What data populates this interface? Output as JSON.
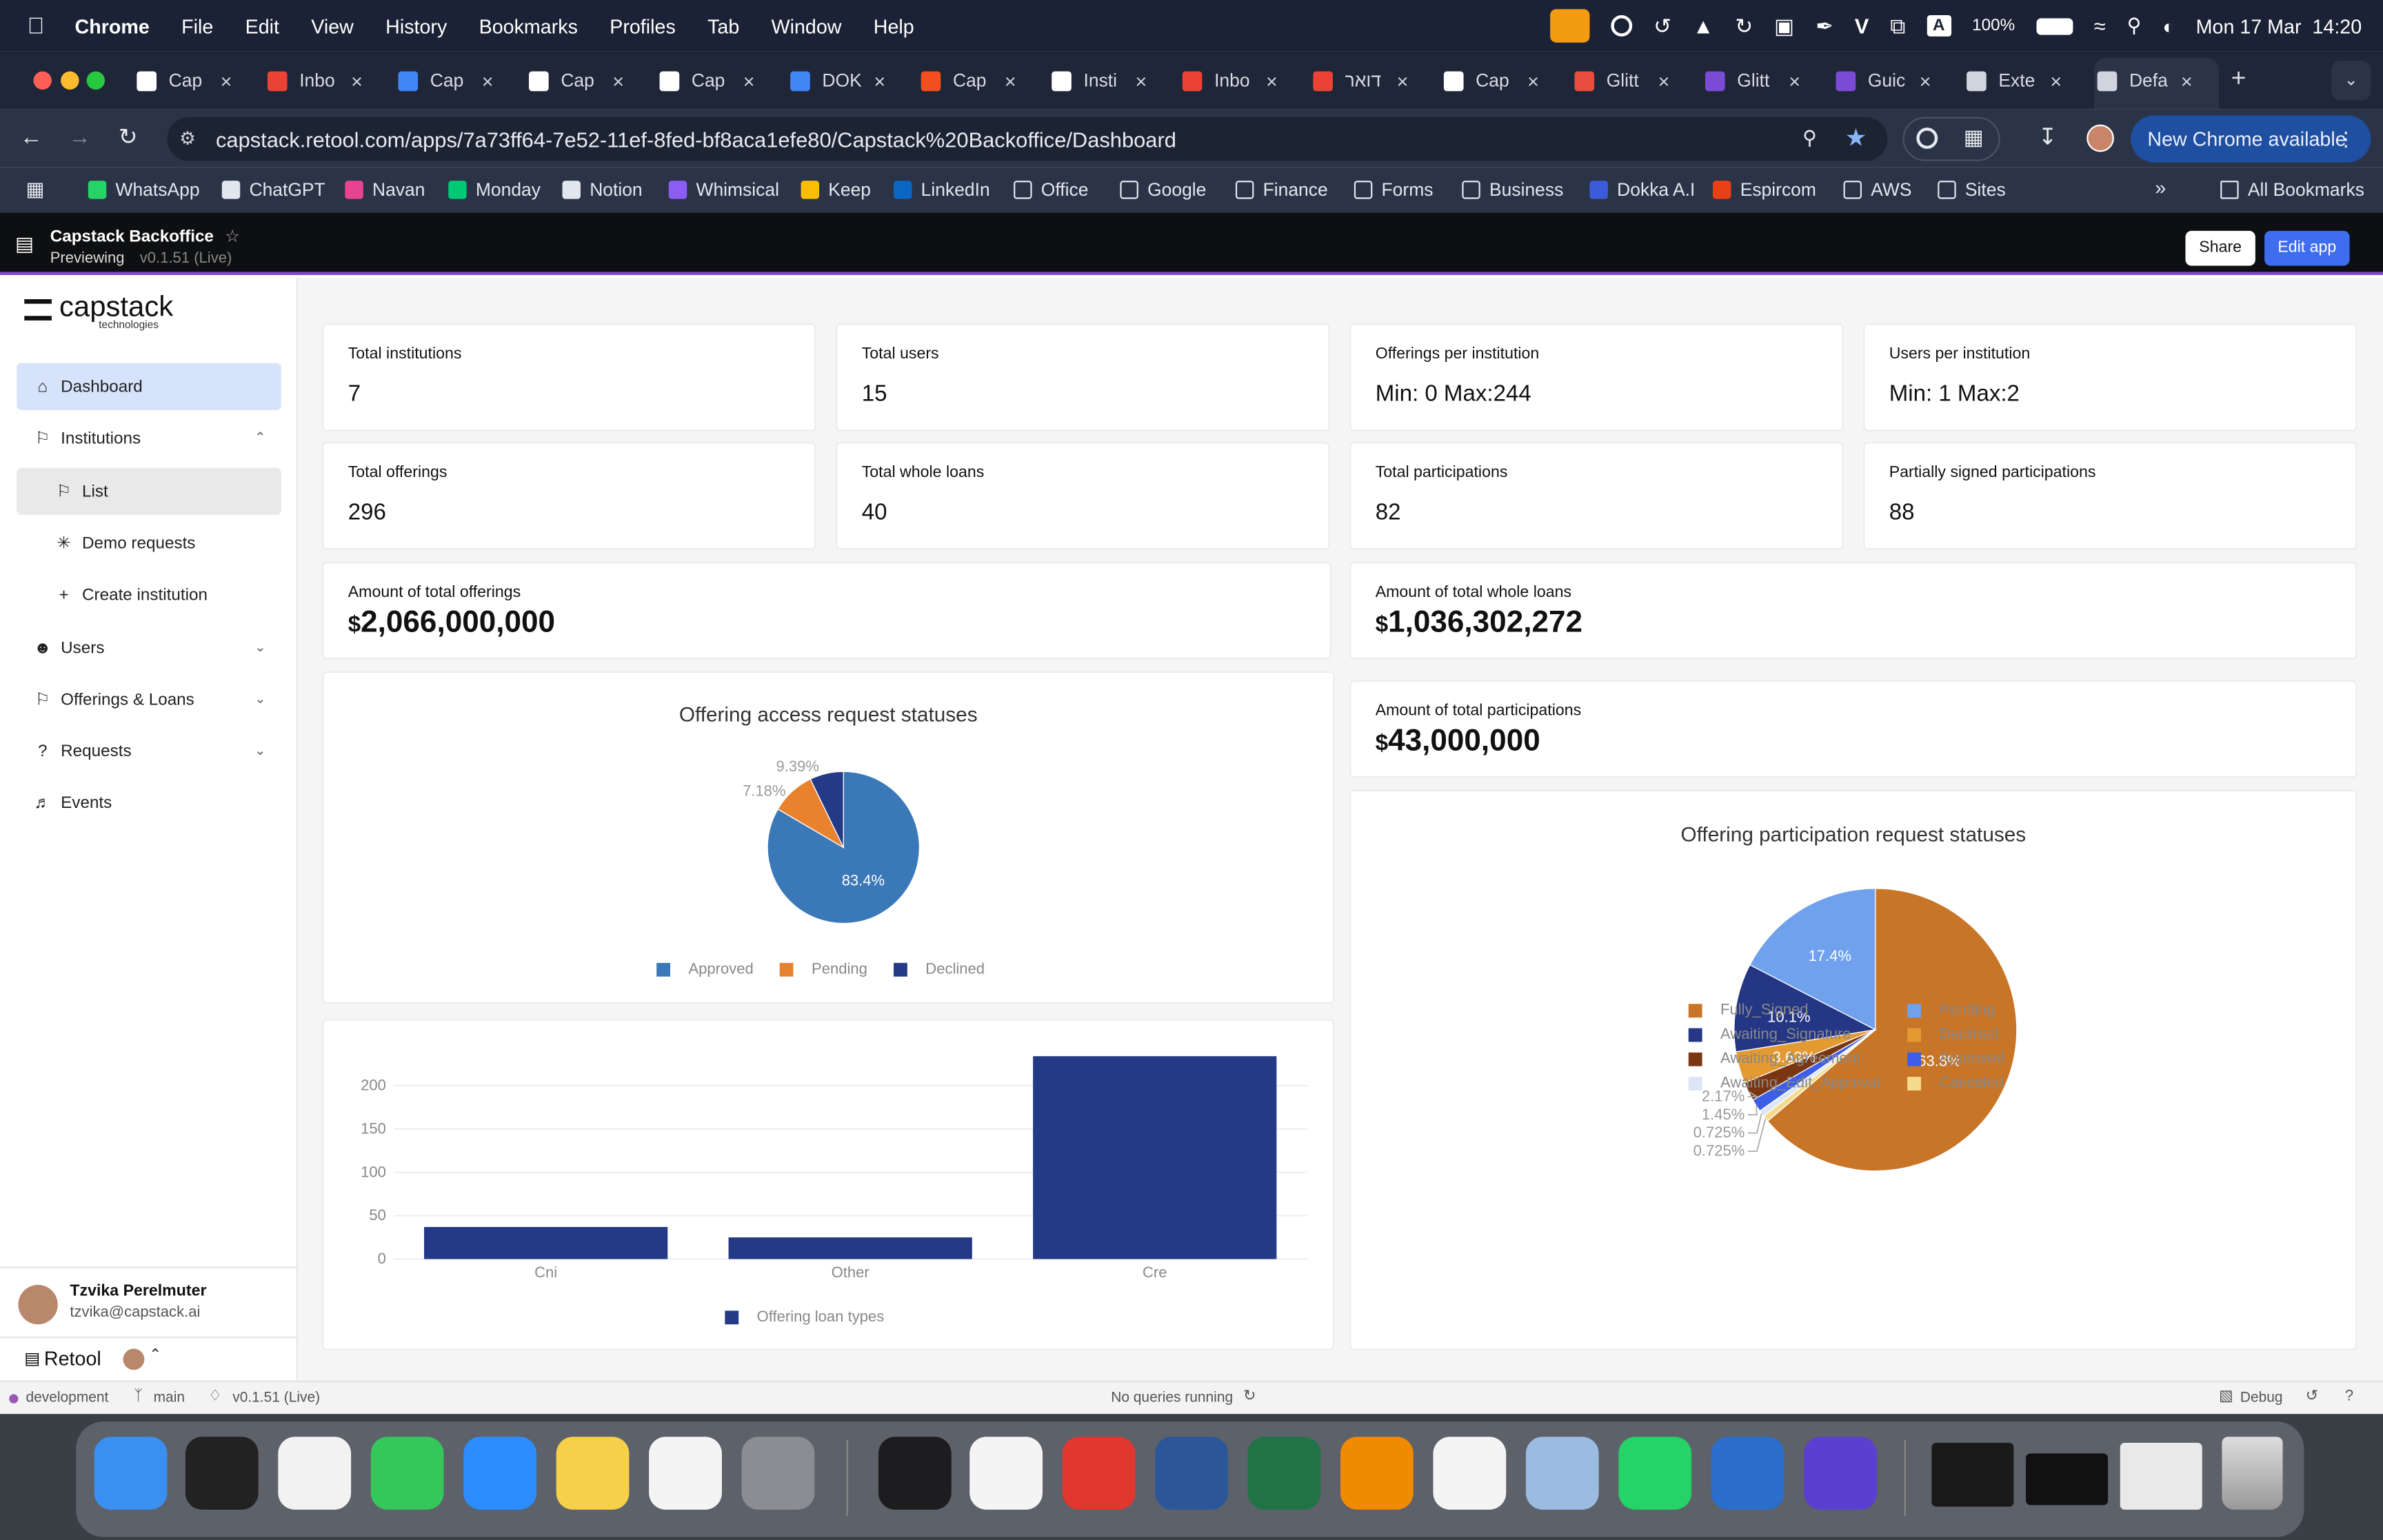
{
  "menubar": {
    "app_name": "Chrome",
    "items": [
      "File",
      "Edit",
      "View",
      "History",
      "Bookmarks",
      "Profiles",
      "Tab",
      "Window",
      "Help"
    ],
    "battery": "100%",
    "datetime": "Mon 17 Mar  14:20"
  },
  "tabs": [
    {
      "label": "Cap",
      "color": "#ffffff"
    },
    {
      "label": "Inbo",
      "color": "#ea4335"
    },
    {
      "label": "Cap",
      "color": "#4285f4"
    },
    {
      "label": "Cap",
      "color": "#ffffff"
    },
    {
      "label": "Cap",
      "color": "#ffffff"
    },
    {
      "label": "DOK",
      "color": "#4285f4"
    },
    {
      "label": "Cap",
      "color": "#f24e1e"
    },
    {
      "label": "Insti",
      "color": "#ffffff"
    },
    {
      "label": "Inbo",
      "color": "#ea4335"
    },
    {
      "label": "דואר",
      "color": "#ea4335"
    },
    {
      "label": "Cap",
      "color": "#ffffff"
    },
    {
      "label": "Glitt",
      "color": "#e74c3c"
    },
    {
      "label": "Glitt",
      "color": "#7b4bd6"
    },
    {
      "label": "Guic",
      "color": "#7b4bd6"
    },
    {
      "label": "Exte",
      "color": "#cfd4de"
    },
    {
      "label": "Defa",
      "color": "#cfd4de"
    }
  ],
  "address": {
    "url": "capstack.retool.com/apps/7a73ff64-7e52-11ef-8fed-bf8aca1efe80/Capstack%20Backoffice/Dashboard",
    "update_label": "New Chrome available"
  },
  "bookmarks": [
    {
      "label": "WhatsApp",
      "color": "#25d366"
    },
    {
      "label": "ChatGPT",
      "color": "#e2e6ee"
    },
    {
      "label": "Navan",
      "color": "#e84393"
    },
    {
      "label": "Monday",
      "color": "#00c875"
    },
    {
      "label": "Notion",
      "color": "#e2e6ee"
    },
    {
      "label": "Whimsical",
      "color": "#8b5cf6"
    },
    {
      "label": "Keep",
      "color": "#fbbc04"
    },
    {
      "label": "LinkedIn",
      "color": "#0a66c2"
    },
    {
      "label": "Office",
      "color": "folder"
    },
    {
      "label": "Google",
      "color": "folder"
    },
    {
      "label": "Finance",
      "color": "folder"
    },
    {
      "label": "Forms",
      "color": "folder"
    },
    {
      "label": "Business",
      "color": "folder"
    },
    {
      "label": "Dokka A.I",
      "color": "#3b5bdb"
    },
    {
      "label": "Espircom",
      "color": "#e84118"
    },
    {
      "label": "AWS",
      "color": "folder"
    },
    {
      "label": "Sites",
      "color": "folder"
    }
  ],
  "all_bookmarks": "All Bookmarks",
  "retool": {
    "app_title": "Capstack Backoffice",
    "previewing": "Previewing",
    "version": "v0.1.51 (Live)",
    "share": "Share",
    "edit": "Edit app"
  },
  "sidebar": {
    "logo_main": "capstack",
    "logo_sub": "technologies",
    "items": [
      {
        "label": "Dashboard",
        "icon": "home-icon"
      },
      {
        "label": "Institutions",
        "icon": "bank-icon"
      },
      {
        "label": "List",
        "icon": "bank-icon"
      },
      {
        "label": "Demo requests",
        "icon": "spinner-icon"
      },
      {
        "label": "Create institution",
        "icon": "plus-icon"
      },
      {
        "label": "Users",
        "icon": "users-icon"
      },
      {
        "label": "Offerings & Loans",
        "icon": "bank-icon"
      },
      {
        "label": "Requests",
        "icon": "question-icon"
      },
      {
        "label": "Events",
        "icon": "megaphone-icon"
      }
    ],
    "user_name": "Tzvika Perelmuter",
    "user_email": "tzvika@capstack.ai",
    "retool_label": "Retool"
  },
  "stats": [
    {
      "label": "Total institutions",
      "value": "7"
    },
    {
      "label": "Total users",
      "value": "15"
    },
    {
      "label": "Offerings per institution",
      "value": "Min: 0 Max:244"
    },
    {
      "label": "Users per institution",
      "value": "Min: 1 Max:2"
    },
    {
      "label": "Total offerings",
      "value": "296"
    },
    {
      "label": "Total whole loans",
      "value": "40"
    },
    {
      "label": "Total participations",
      "value": "82"
    },
    {
      "label": "Partially signed participations",
      "value": "88"
    }
  ],
  "amounts": {
    "offerings": {
      "label": "Amount of total offerings",
      "currency": "$",
      "value": "2,066,000,000"
    },
    "whole_loans": {
      "label": "Amount of total whole loans",
      "currency": "$",
      "value": "1,036,302,272"
    },
    "participations": {
      "label": "Amount of total participations",
      "currency": "$",
      "value": "43,000,000"
    }
  },
  "chart_data": [
    {
      "type": "pie",
      "title": "Offering access request statuses",
      "series": [
        {
          "name": "Approved",
          "value": 83.4,
          "label": "83.4%",
          "color": "#3a78b8"
        },
        {
          "name": "Pending",
          "value": 9.39,
          "label": "9.39%",
          "color": "#e8822f"
        },
        {
          "name": "Declined",
          "value": 7.18,
          "label": "7.18%",
          "color": "#253a86"
        }
      ],
      "legend_position": "bottom"
    },
    {
      "type": "bar",
      "categories": [
        "Cni",
        "Other",
        "Cre"
      ],
      "values": [
        37,
        25,
        234
      ],
      "ylim": [
        0,
        240
      ],
      "yticks": [
        0,
        50,
        100,
        150,
        200
      ],
      "grid": true,
      "series_name": "Offering loan types",
      "color": "#253a86"
    },
    {
      "type": "pie",
      "title": "Offering participation request statuses",
      "series": [
        {
          "name": "Fully_Signed",
          "value": 63.8,
          "label": "63.8%",
          "color": "#c87528"
        },
        {
          "name": "Canceled",
          "value": 0.725,
          "label": "0.725%",
          "color": "#f5dc8c"
        },
        {
          "name": "Awaiting_Edit_Approval",
          "value": 0.725,
          "label": "0.725%",
          "color": "#dde6f5"
        },
        {
          "name": "Approved",
          "value": 1.45,
          "label": "1.45%",
          "color": "#3d5fe6"
        },
        {
          "name": "Awaiting_Agreement",
          "value": 2.17,
          "label": "2.17%",
          "color": "#7a3612"
        },
        {
          "name": "Declined",
          "value": 3.62,
          "label": "3.62%",
          "color": "#e39a33"
        },
        {
          "name": "Awaiting_Signature",
          "value": 10.1,
          "label": "10.1%",
          "color": "#243684"
        },
        {
          "name": "Pending",
          "value": 17.4,
          "label": "17.4%",
          "color": "#6fa1ec"
        }
      ],
      "legend_position": "bottom"
    }
  ],
  "participation_legend": [
    {
      "name": "Fully_Signed",
      "color": "#c87528"
    },
    {
      "name": "Pending",
      "color": "#6fa1ec"
    },
    {
      "name": "Awaiting_Signature",
      "color": "#243684"
    },
    {
      "name": "Declined",
      "color": "#e39a33"
    },
    {
      "name": "Awaiting_Agreement",
      "color": "#7a3612"
    },
    {
      "name": "Approved",
      "color": "#3d5fe6"
    },
    {
      "name": "Awaiting_Edit_Approval",
      "color": "#dde6f5"
    },
    {
      "name": "Canceled",
      "color": "#f5dc8c"
    }
  ],
  "statusbar": {
    "env": "development",
    "branch": "main",
    "version": "v0.1.51 (Live)",
    "queries": "No queries running",
    "debug": "Debug"
  },
  "dock": [
    {
      "name": "finder",
      "color": "#3b8ff0"
    },
    {
      "name": "terminal",
      "color": "#222"
    },
    {
      "name": "chrome",
      "color": "#f2f2f2"
    },
    {
      "name": "messages",
      "color": "#35c759"
    },
    {
      "name": "zoom",
      "color": "#2d8cff"
    },
    {
      "name": "notes",
      "color": "#f7d04a"
    },
    {
      "name": "slack",
      "color": "#f4f4f4"
    },
    {
      "name": "system-settings",
      "color": "#8a8d92"
    },
    {
      "name": "activity-monitor",
      "color": "#1d1d1f"
    },
    {
      "name": "csv-editor",
      "color": "#f4f4f4"
    },
    {
      "name": "pdf",
      "color": "#e0382f"
    },
    {
      "name": "word",
      "color": "#2b579a"
    },
    {
      "name": "excel",
      "color": "#217346"
    },
    {
      "name": "vlc",
      "color": "#f08a00"
    },
    {
      "name": "textedit",
      "color": "#f4f4f4"
    },
    {
      "name": "preview",
      "color": "#9bbbe0"
    },
    {
      "name": "whatsapp",
      "color": "#25d366"
    },
    {
      "name": "1password",
      "color": "#2c6ecb"
    },
    {
      "name": "grammarly",
      "color": "#5a3fd0"
    }
  ]
}
